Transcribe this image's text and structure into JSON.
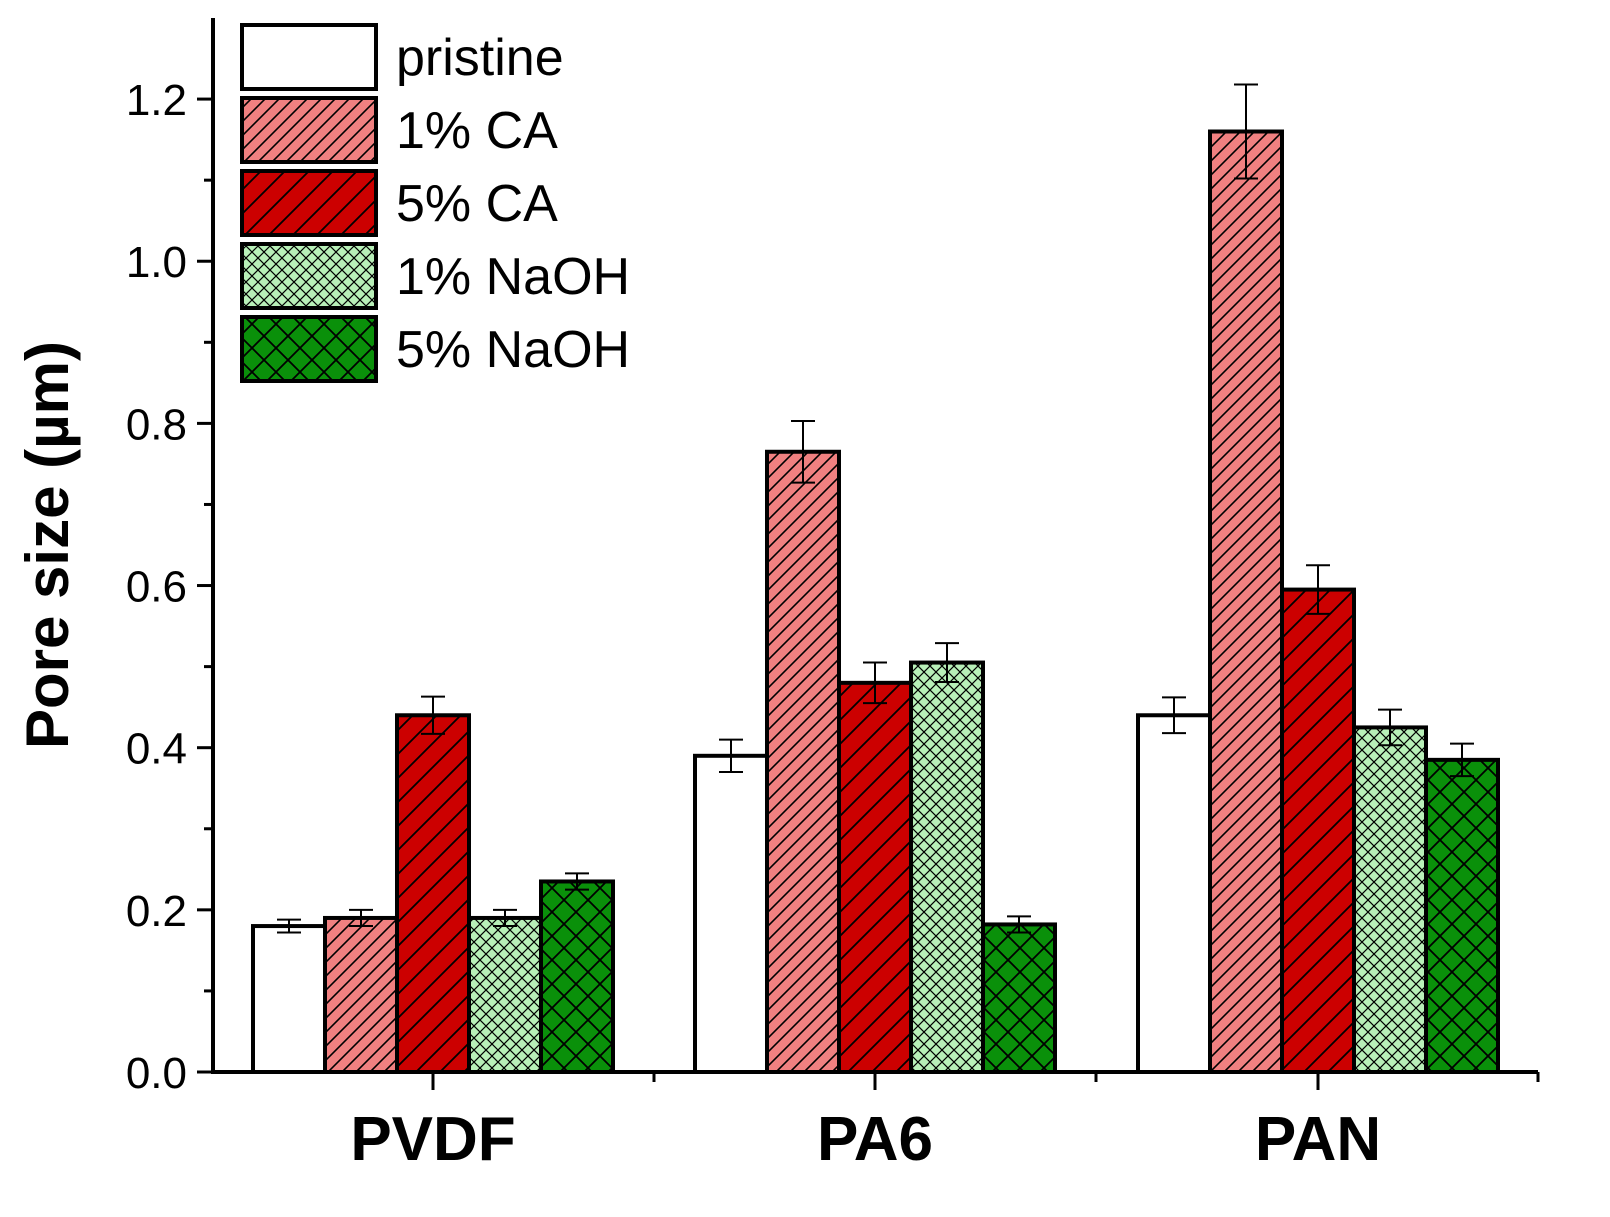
{
  "chart_data": {
    "type": "bar",
    "title": "",
    "xlabel": "",
    "ylabel": "Pore size (µm)",
    "ylim": [
      0,
      1.3
    ],
    "yticks": [
      "0.0",
      "0.2",
      "0.4",
      "0.6",
      "0.8",
      "1.0",
      "1.2"
    ],
    "categories": [
      "PVDF",
      "PA6",
      "PAN"
    ],
    "legend_position": "top-left",
    "series": [
      {
        "name": "pristine",
        "fill": "#ffffff",
        "pattern": "none",
        "values": [
          0.18,
          0.39,
          0.44
        ],
        "errors": [
          0.008,
          0.02,
          0.022
        ]
      },
      {
        "name": "1% CA",
        "fill": "#f08080",
        "pattern": "dense-diagonal",
        "values": [
          0.19,
          0.765,
          1.16
        ],
        "errors": [
          0.01,
          0.038,
          0.058
        ]
      },
      {
        "name": "5% CA",
        "fill": "#cc0000",
        "pattern": "diagonal",
        "values": [
          0.44,
          0.48,
          0.595
        ],
        "errors": [
          0.023,
          0.025,
          0.03
        ]
      },
      {
        "name": "1% NaOH",
        "fill": "#b8f0b8",
        "pattern": "fine-crosshatch",
        "values": [
          0.19,
          0.505,
          0.425
        ],
        "errors": [
          0.01,
          0.024,
          0.022
        ]
      },
      {
        "name": "5% NaOH",
        "fill": "#0a900a",
        "pattern": "crosshatch",
        "values": [
          0.235,
          0.182,
          0.385
        ],
        "errors": [
          0.01,
          0.01,
          0.02
        ]
      }
    ]
  }
}
